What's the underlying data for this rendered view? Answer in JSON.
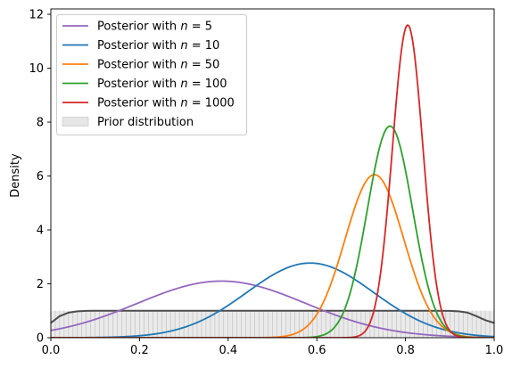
{
  "chart_data": {
    "type": "line",
    "title": "",
    "xlabel": "",
    "ylabel": "Density",
    "xlim": [
      0.0,
      1.0
    ],
    "ylim": [
      0,
      12.2
    ],
    "xticks": [
      "0.0",
      "0.2",
      "0.4",
      "0.6",
      "0.8",
      "1.0"
    ],
    "yticks": [
      "0",
      "2",
      "4",
      "6",
      "8",
      "10",
      "12"
    ],
    "grid": false,
    "legend_position": "top-left",
    "prior": {
      "name": "Prior distribution",
      "color": "#4d4d4d",
      "fill_color": "#e6e6e6",
      "x": [
        0.0,
        0.02,
        0.04,
        0.06,
        0.08,
        0.1,
        0.15,
        0.2,
        0.3,
        0.4,
        0.5,
        0.6,
        0.7,
        0.8,
        0.85,
        0.9,
        0.92,
        0.94,
        0.96,
        0.98,
        1.0
      ],
      "y": [
        0.55,
        0.8,
        0.93,
        0.98,
        0.995,
        1.0,
        1.0,
        1.0,
        1.0,
        1.0,
        1.0,
        1.0,
        1.0,
        1.0,
        1.0,
        0.995,
        0.98,
        0.93,
        0.8,
        0.65,
        0.55
      ]
    },
    "series": [
      {
        "name": "Posterior with $n = 5$",
        "n": "5",
        "color": "#9467bd",
        "mean": 0.385,
        "sd": 0.19,
        "peak": 2.1
      },
      {
        "name": "Posterior with $n = 10$",
        "n": "10",
        "color": "#1f77b4",
        "mean": 0.585,
        "sd": 0.143,
        "peak": 2.77
      },
      {
        "name": "Posterior with $n = 50$",
        "n": "50",
        "color": "#ff7f0e",
        "mean": 0.73,
        "sd": 0.066,
        "peak": 6.05
      },
      {
        "name": "Posterior with $n = 100$",
        "n": "100",
        "color": "#2ca02c",
        "mean": 0.765,
        "sd": 0.051,
        "peak": 7.85
      },
      {
        "name": "Posterior with $n = 1000$",
        "n": "1000",
        "color": "#d62728",
        "mean": 0.805,
        "sd": 0.0345,
        "peak": 11.6
      }
    ],
    "legend": {
      "prefix": "Posterior with ",
      "n_symbol": "n",
      "equals": " = ",
      "prior_label": "Prior distribution"
    }
  }
}
